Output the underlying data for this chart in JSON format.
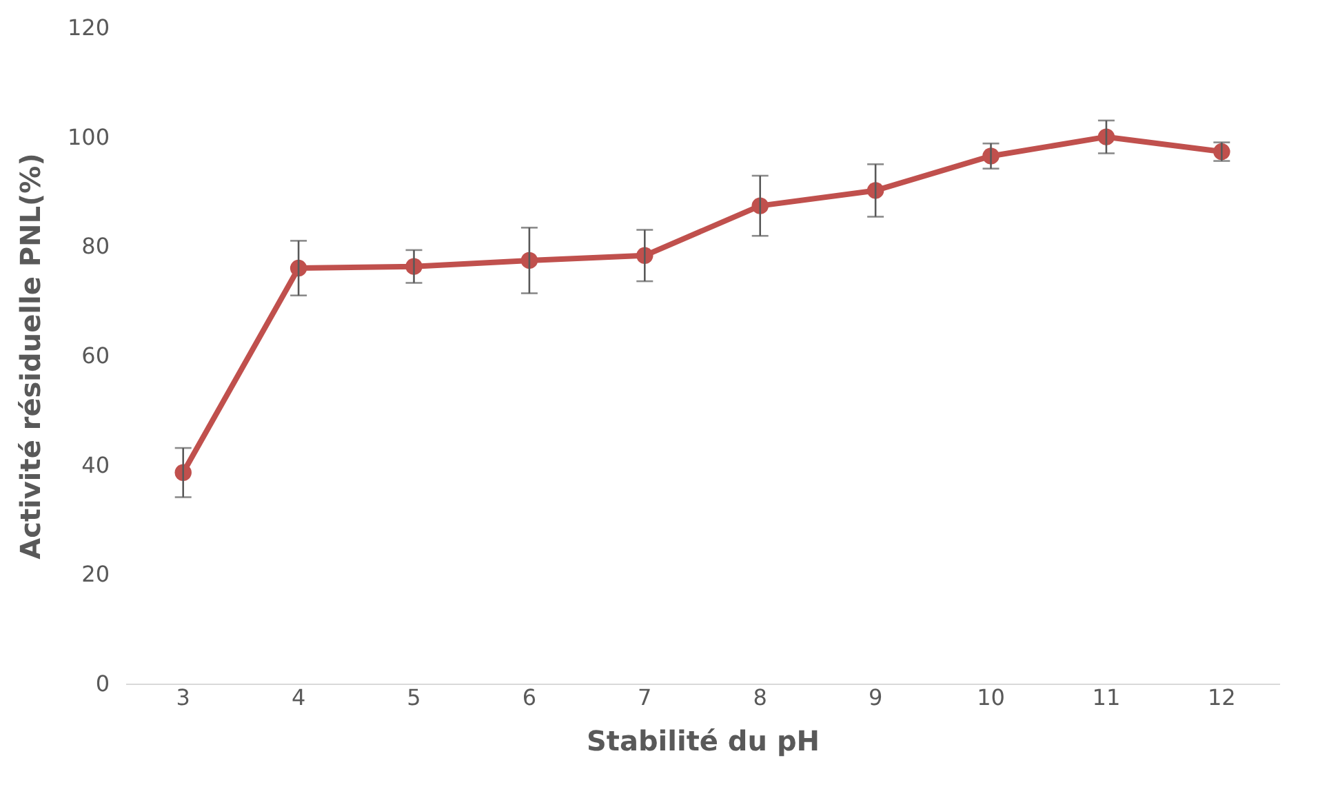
{
  "chart_data": {
    "type": "line",
    "xlabel": "Stabilité du pH",
    "ylabel": "Activité résiduelle  PNL(%)",
    "categories": [
      "3",
      "4",
      "5",
      "6",
      "7",
      "8",
      "9",
      "10",
      "11",
      "12"
    ],
    "series": [
      {
        "color": "#c0504d",
        "values": [
          38.6,
          76,
          76.3,
          77.4,
          78.3,
          87.4,
          90.2,
          96.5,
          100,
          97.3
        ],
        "errors": [
          4.5,
          5,
          3,
          6,
          4.7,
          5.5,
          4.8,
          2.3,
          3,
          1.7
        ]
      }
    ],
    "ylim": [
      0,
      120
    ],
    "yticks": [
      0,
      20,
      40,
      60,
      80,
      100,
      120
    ],
    "grid": false,
    "marker": "circle",
    "line_style": "solid"
  }
}
